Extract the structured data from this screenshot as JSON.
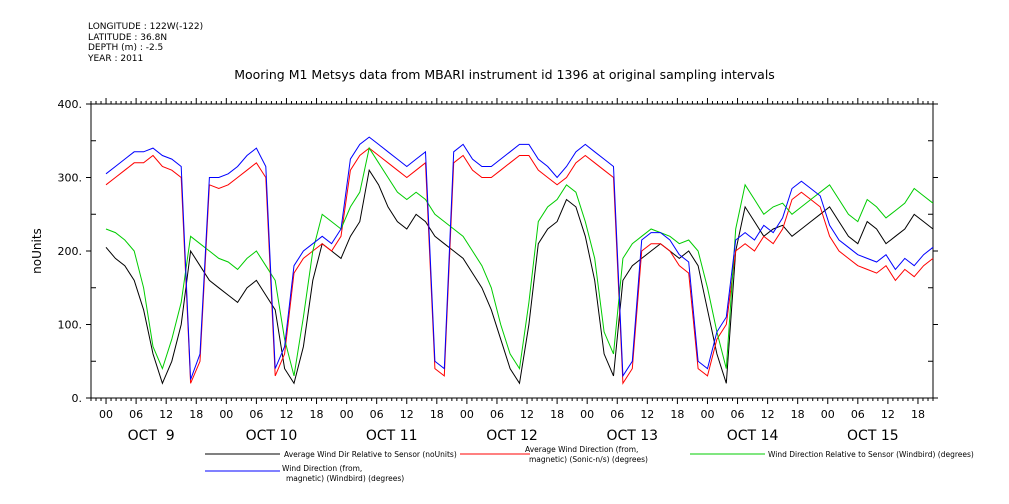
{
  "meta": {
    "longitude": "LONGITUDE : 122W(-122)",
    "latitude": "LATITUDE : 36.8N",
    "depth": "DEPTH (m) : -2.5",
    "year": "YEAR : 2011"
  },
  "chart_data": {
    "type": "line",
    "title": "Mooring M1 Metsys data from MBARI instrument id 1396 at original sampling intervals",
    "ylabel": "noUnits",
    "xlabel": "",
    "ylim": [
      0,
      400
    ],
    "y_ticks": [
      "0.",
      "100.",
      "200.",
      "300.",
      "400."
    ],
    "x_range_hours": [
      -3,
      165
    ],
    "hour_tick_labels": [
      "00",
      "06",
      "12",
      "18"
    ],
    "day_labels": [
      "OCT  9",
      "OCT 10",
      "OCT 11",
      "OCT 12",
      "OCT 13",
      "OCT 14",
      "OCT 15"
    ],
    "grid": false,
    "legend_position": "bottom",
    "series": [
      {
        "name": "Average Wind Dir Relative to Sensor (noUnits)",
        "color": "#000000",
        "values": [
          205,
          190,
          180,
          160,
          120,
          60,
          20,
          50,
          100,
          200,
          180,
          160,
          150,
          140,
          130,
          150,
          160,
          140,
          120,
          40,
          20,
          70,
          160,
          210,
          200,
          190,
          220,
          240,
          310,
          290,
          260,
          240,
          230,
          250,
          240,
          220,
          210,
          200,
          190,
          170,
          150,
          120,
          80,
          40,
          20,
          100,
          210,
          230,
          240,
          270,
          260,
          220,
          160,
          60,
          30,
          160,
          180,
          190,
          200,
          210,
          200,
          190,
          200,
          180,
          120,
          60,
          20,
          200,
          260,
          240,
          220,
          230,
          235,
          220,
          230,
          240,
          250,
          260,
          240,
          220,
          210,
          240,
          230,
          210,
          220,
          230,
          250,
          240,
          230
        ]
      },
      {
        "name": "Average Wind Direction (from, magnetic) (Sonic-n/s) (degrees)",
        "color": "#ff0000",
        "values": [
          290,
          300,
          310,
          320,
          320,
          330,
          315,
          310,
          300,
          20,
          50,
          290,
          285,
          290,
          300,
          310,
          320,
          300,
          30,
          60,
          170,
          190,
          200,
          210,
          200,
          220,
          310,
          330,
          340,
          330,
          320,
          310,
          300,
          310,
          320,
          40,
          30,
          320,
          330,
          310,
          300,
          300,
          310,
          320,
          330,
          330,
          310,
          300,
          290,
          300,
          320,
          330,
          320,
          310,
          300,
          20,
          40,
          200,
          210,
          210,
          200,
          180,
          170,
          40,
          30,
          80,
          100,
          200,
          210,
          200,
          220,
          210,
          230,
          270,
          280,
          270,
          260,
          220,
          200,
          190,
          180,
          175,
          170,
          180,
          160,
          175,
          165,
          180,
          190
        ]
      },
      {
        "name": "Wind Direction Relative to Sensor (Windbird) (degrees)",
        "color": "#00cc00",
        "values": [
          230,
          225,
          215,
          200,
          150,
          70,
          40,
          80,
          130,
          220,
          210,
          200,
          190,
          185,
          175,
          190,
          200,
          180,
          160,
          80,
          30,
          110,
          200,
          250,
          240,
          230,
          260,
          280,
          340,
          320,
          300,
          280,
          270,
          280,
          270,
          250,
          240,
          230,
          220,
          200,
          180,
          150,
          100,
          60,
          40,
          130,
          240,
          260,
          270,
          290,
          280,
          240,
          190,
          90,
          60,
          190,
          210,
          220,
          230,
          225,
          220,
          210,
          215,
          200,
          150,
          90,
          40,
          230,
          290,
          270,
          250,
          260,
          265,
          250,
          260,
          270,
          280,
          290,
          270,
          250,
          240,
          270,
          260,
          245,
          255,
          265,
          285,
          275,
          265
        ]
      },
      {
        "name": "Wind Direction (from, magnetic) (Windbird) (degrees)",
        "color": "#0000ff",
        "values": [
          305,
          315,
          325,
          335,
          335,
          340,
          330,
          325,
          315,
          25,
          60,
          300,
          300,
          305,
          315,
          330,
          340,
          315,
          40,
          70,
          180,
          200,
          210,
          220,
          210,
          230,
          325,
          345,
          355,
          345,
          335,
          325,
          315,
          325,
          335,
          50,
          40,
          335,
          345,
          325,
          315,
          315,
          325,
          335,
          345,
          345,
          325,
          315,
          300,
          315,
          335,
          345,
          335,
          325,
          315,
          30,
          50,
          215,
          225,
          225,
          215,
          195,
          185,
          50,
          40,
          90,
          110,
          215,
          225,
          215,
          235,
          225,
          245,
          285,
          295,
          285,
          275,
          235,
          215,
          205,
          195,
          190,
          185,
          195,
          175,
          190,
          180,
          195,
          205
        ]
      }
    ]
  }
}
